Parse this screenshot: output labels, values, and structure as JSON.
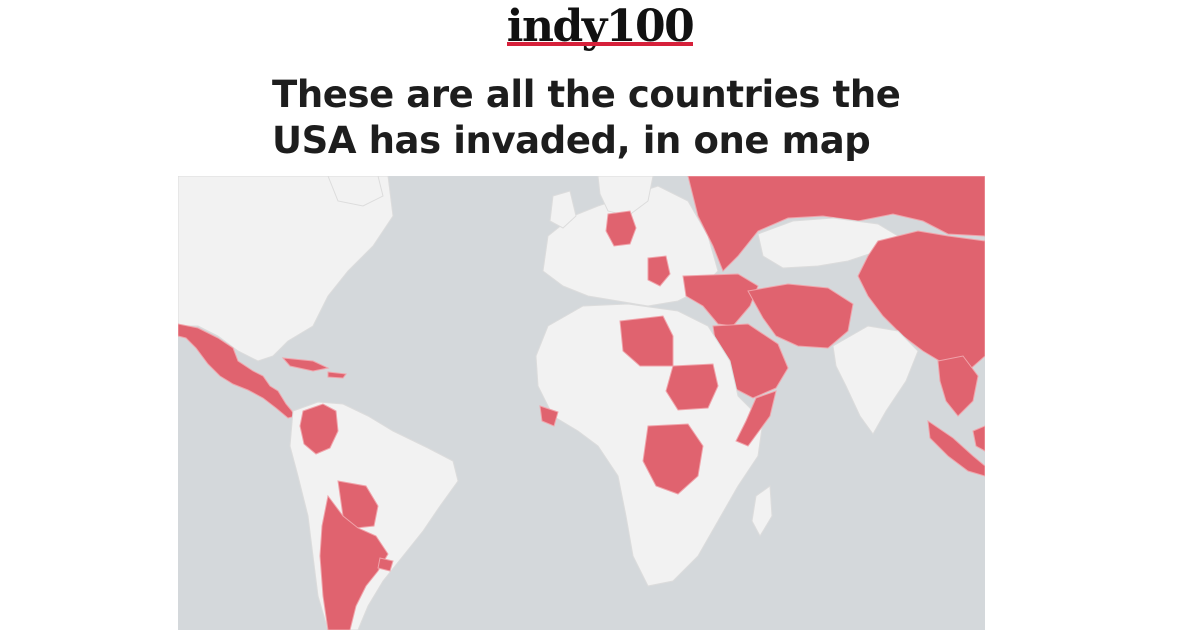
{
  "brand": {
    "logo_text": "indy100"
  },
  "headline": {
    "line1": "These are all the countries the",
    "line2": "USA has invaded, in one map"
  },
  "map": {
    "colors": {
      "ocean": "#d4d8db",
      "land": "#f2f2f2",
      "invaded": "#e0636f"
    }
  }
}
